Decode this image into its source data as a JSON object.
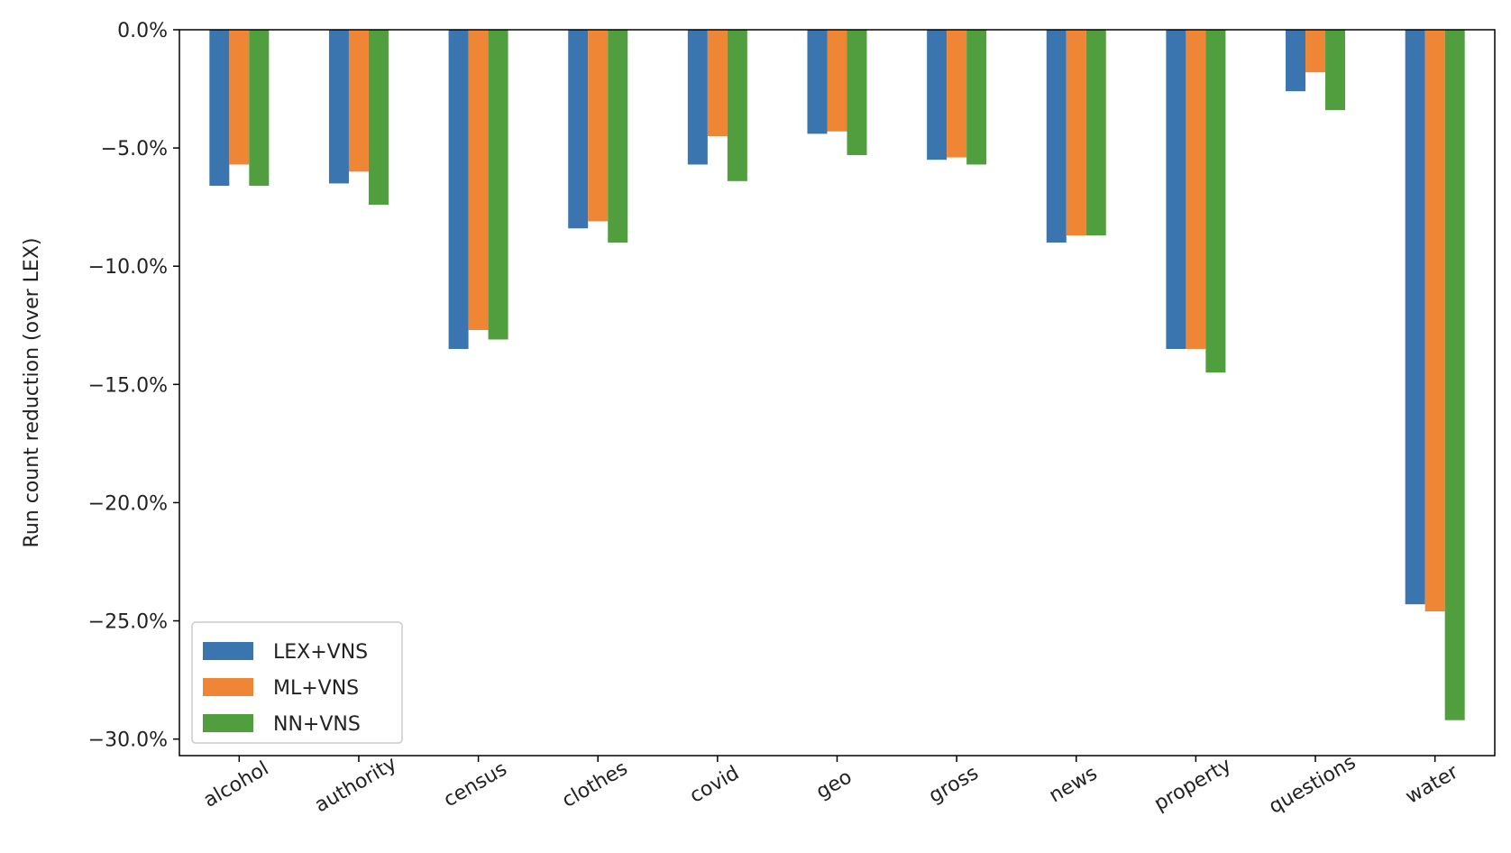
{
  "chart_data": {
    "type": "bar",
    "title": "",
    "xlabel": "",
    "ylabel": "Run count reduction (over LEX)",
    "ylim": [
      -30.7,
      0
    ],
    "yticks": [
      0,
      -5,
      -10,
      -15,
      -20,
      -25,
      -30
    ],
    "ytick_labels": [
      "0.0%",
      "−5.0%",
      "−10.0%",
      "−15.0%",
      "−20.0%",
      "−25.0%",
      "−30.0%"
    ],
    "categories": [
      "alcohol",
      "authority",
      "census",
      "clothes",
      "covid",
      "geo",
      "gross",
      "news",
      "property",
      "questions",
      "water"
    ],
    "series": [
      {
        "name": "LEX+VNS",
        "color": "#3b75af",
        "values": [
          -6.6,
          -6.5,
          -13.5,
          -8.4,
          -5.7,
          -4.4,
          -5.5,
          -9.0,
          -13.5,
          -2.6,
          -24.3
        ]
      },
      {
        "name": "ML+VNS",
        "color": "#ef8636",
        "values": [
          -5.7,
          -6.0,
          -12.7,
          -8.1,
          -4.5,
          -4.3,
          -5.4,
          -8.7,
          -13.5,
          -1.8,
          -24.6
        ]
      },
      {
        "name": "NN+VNS",
        "color": "#519e3e",
        "values": [
          -6.6,
          -7.4,
          -13.1,
          -9.0,
          -6.4,
          -5.3,
          -5.7,
          -8.7,
          -14.5,
          -3.4,
          -29.2
        ]
      }
    ],
    "legend_position": "lower-left",
    "grid": false
  }
}
